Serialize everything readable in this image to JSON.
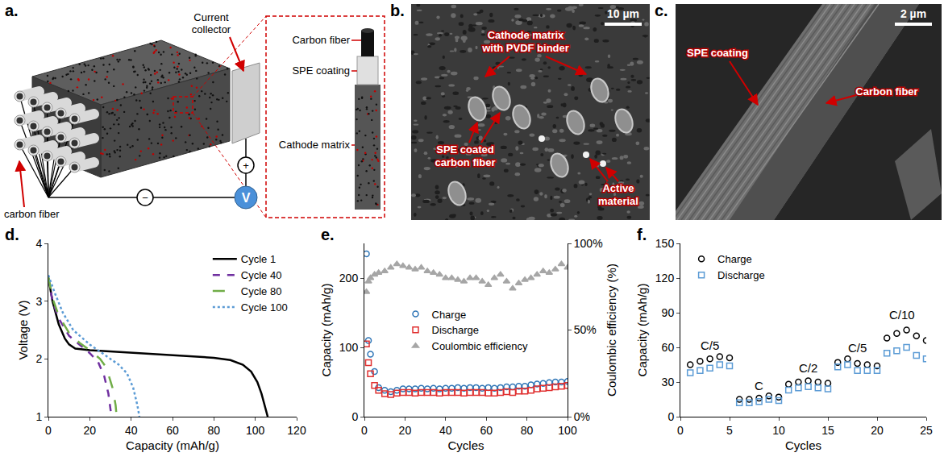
{
  "panels": {
    "a": {
      "letter": "a.",
      "labels": {
        "carbon_fiber": "carbon fiber",
        "current_collector": "Current collector",
        "minus": "−",
        "plus": "+",
        "voltmeter": "V"
      },
      "inset": {
        "carbon_fiber": "Carbon fiber",
        "spe_coating": "SPE coating",
        "cathode_matrix": "Cathode matrix"
      }
    },
    "b": {
      "letter": "b.",
      "scale_bar": "10 µm",
      "labels": [
        "Cathode matrix with PVDF binder",
        "SPE coated carbon fiber",
        "Active material"
      ]
    },
    "c": {
      "letter": "c.",
      "scale_bar": "2 µm",
      "labels": [
        "SPE coating",
        "Carbon fiber"
      ]
    }
  },
  "chart_data": [
    {
      "letter": "d.",
      "type": "line",
      "x_label": "Capacity (mAh/g)",
      "y_label": "Voltage (V)",
      "xlim": [
        0,
        120
      ],
      "xticks": [
        0,
        20,
        40,
        60,
        80,
        100,
        120
      ],
      "ylim": [
        1,
        4
      ],
      "yticks": [
        1,
        2,
        3,
        4
      ],
      "legend": "upper right",
      "series": [
        {
          "name": "Cycle 1",
          "color": "#000000",
          "line_style": "solid",
          "x": [
            0,
            2,
            5,
            8,
            10,
            13,
            20,
            30,
            40,
            50,
            60,
            70,
            80,
            88,
            94,
            98,
            101,
            103,
            105,
            106
          ],
          "values": [
            3.4,
            3.0,
            2.6,
            2.35,
            2.25,
            2.18,
            2.15,
            2.13,
            2.11,
            2.09,
            2.07,
            2.05,
            2.02,
            1.98,
            1.9,
            1.78,
            1.6,
            1.4,
            1.15,
            1.0
          ]
        },
        {
          "name": "Cycle 40",
          "color": "#7030a0",
          "line_style": "dash",
          "x": [
            0,
            2,
            5,
            10,
            15,
            20,
            24,
            27,
            29,
            30,
            30.5
          ],
          "values": [
            3.4,
            3.0,
            2.7,
            2.4,
            2.25,
            2.1,
            1.95,
            1.7,
            1.4,
            1.15,
            1.0
          ]
        },
        {
          "name": "Cycle 80",
          "color": "#70ad47",
          "line_style": "longdash",
          "x": [
            0,
            2,
            5,
            10,
            15,
            20,
            25,
            28,
            31,
            32.5,
            33
          ],
          "values": [
            3.42,
            3.05,
            2.75,
            2.45,
            2.28,
            2.15,
            2.0,
            1.85,
            1.5,
            1.2,
            1.0
          ]
        },
        {
          "name": "Cycle 100",
          "color": "#5b9bd5",
          "line_style": "dot",
          "x": [
            0,
            3,
            7,
            12,
            20,
            28,
            34,
            38,
            41,
            43,
            44
          ],
          "values": [
            3.45,
            3.15,
            2.8,
            2.5,
            2.25,
            2.05,
            1.9,
            1.75,
            1.5,
            1.2,
            1.0
          ]
        }
      ]
    },
    {
      "letter": "e.",
      "type": "scatter",
      "x_label": "Cycles",
      "y_label": "Capacity (mAh/g)",
      "y2_label": "Coulombic efficiency (%)",
      "x": [
        1,
        2,
        3,
        5,
        7,
        10,
        13,
        16,
        19,
        22,
        25,
        28,
        31,
        34,
        37,
        40,
        43,
        46,
        49,
        52,
        55,
        58,
        61,
        64,
        67,
        70,
        73,
        76,
        79,
        82,
        85,
        88,
        91,
        94,
        97,
        100
      ],
      "xlim": [
        0,
        100
      ],
      "xticks": [
        0,
        20,
        40,
        60,
        80,
        100
      ],
      "ylim": [
        0,
        250
      ],
      "yticks": [
        0,
        100,
        200
      ],
      "y2lim": [
        0,
        100
      ],
      "y2ticks": [
        {
          "value": 0,
          "label": "0%"
        },
        {
          "value": 50,
          "label": "50%"
        },
        {
          "value": 100,
          "label": "100%"
        }
      ],
      "legend": "center",
      "series": [
        {
          "name": "Charge",
          "color": "#2e75b6",
          "marker": "circle-open",
          "values": [
            235,
            110,
            90,
            65,
            42,
            38,
            36,
            38,
            40,
            40,
            40,
            41,
            40,
            41,
            40,
            41,
            41,
            42,
            41,
            42,
            42,
            41,
            42,
            41,
            42,
            43,
            43,
            44,
            44,
            46,
            47,
            48,
            49,
            50,
            50,
            51
          ]
        },
        {
          "name": "Discharge",
          "color": "#e03030",
          "marker": "square-open",
          "values": [
            105,
            78,
            62,
            45,
            38,
            33,
            32,
            34,
            35,
            35,
            34,
            35,
            35,
            35,
            34,
            35,
            35,
            35,
            34,
            35,
            35,
            35,
            34,
            34,
            35,
            36,
            35,
            37,
            37,
            38,
            40,
            41,
            42,
            43,
            44,
            45
          ]
        },
        {
          "name": "Coulombic efficiency",
          "color": "#a6a6a6",
          "marker": "triangle-up",
          "axis": "y2",
          "values": [
            72,
            78,
            80,
            82,
            83,
            84,
            86,
            88,
            87,
            86,
            85,
            86,
            84,
            83,
            82,
            80,
            80,
            79,
            78,
            80,
            80,
            78,
            76,
            80,
            82,
            78,
            74,
            77,
            79,
            80,
            82,
            84,
            83,
            85,
            88,
            86
          ]
        }
      ]
    },
    {
      "letter": "f.",
      "type": "scatter",
      "x_label": "Cycles",
      "y_label": "Capacity (mAh/g)",
      "x": [
        1,
        2,
        3,
        4,
        5,
        6,
        7,
        8,
        9,
        10,
        11,
        12,
        13,
        14,
        15,
        16,
        17,
        18,
        19,
        20,
        21,
        22,
        23,
        24,
        25
      ],
      "xlim": [
        0,
        25
      ],
      "xticks": [
        0,
        5,
        10,
        15,
        20,
        25
      ],
      "ylim": [
        0,
        150
      ],
      "yticks": [
        0,
        30,
        60,
        90,
        120,
        150
      ],
      "legend": "upper left",
      "annotations": [
        {
          "text": "C/5",
          "x": 3,
          "y": 62
        },
        {
          "text": "C",
          "x": 8,
          "y": 27
        },
        {
          "text": "C/2",
          "x": 13,
          "y": 42
        },
        {
          "text": "C/5",
          "x": 18,
          "y": 60
        },
        {
          "text": "C/10",
          "x": 22.5,
          "y": 88
        }
      ],
      "series": [
        {
          "name": "Charge",
          "color": "#000000",
          "marker": "circle-open",
          "values": [
            45,
            48,
            50,
            52,
            51,
            15,
            15,
            16,
            18,
            17,
            28,
            30,
            31,
            30,
            29,
            47,
            50,
            46,
            45,
            44,
            68,
            72,
            75,
            70,
            66
          ]
        },
        {
          "name": "Discharge",
          "color": "#5b9bd5",
          "marker": "square-open",
          "values": [
            38,
            40,
            42,
            45,
            44,
            12,
            12,
            13,
            15,
            14,
            23,
            25,
            26,
            25,
            24,
            43,
            45,
            40,
            40,
            40,
            55,
            57,
            60,
            53,
            50
          ]
        }
      ]
    }
  ]
}
